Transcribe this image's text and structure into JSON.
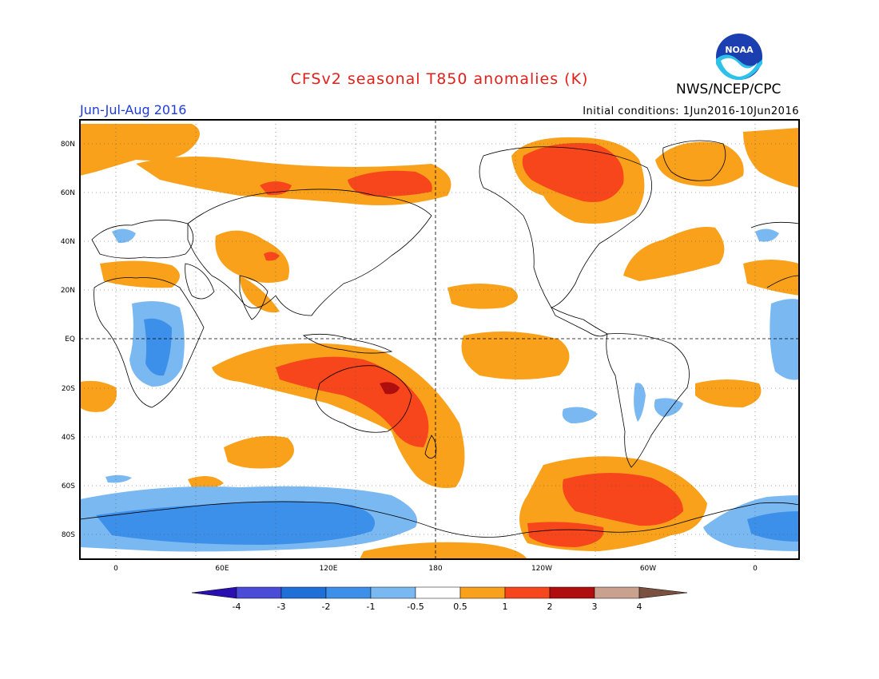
{
  "title": "CFSv2 seasonal T850 anomalies (K)",
  "agency": "NWS/NCEP/CPC",
  "logo_text": "NOAA",
  "period": "Jun-Jul-Aug 2016",
  "initial_conditions": "Initial conditions: 1Jun2016-10Jun2016",
  "lat_labels": [
    "80N",
    "60N",
    "40N",
    "20N",
    "EQ",
    "20S",
    "40S",
    "60S",
    "80S"
  ],
  "lon_labels": [
    "0",
    "60E",
    "120E",
    "180",
    "120W",
    "60W",
    "0"
  ],
  "colorbar": {
    "labels": [
      "-4",
      "-3",
      "-2",
      "-1",
      "-0.5",
      "0.5",
      "1",
      "2",
      "3",
      "4"
    ],
    "colors": [
      "#2a0fb0",
      "#4a4bd6",
      "#1f6fd8",
      "#3d90ea",
      "#7ab8f2",
      "#ffffff",
      "#f9a11b",
      "#f7461c",
      "#b00e0e",
      "#caa08e",
      "#7a5140"
    ]
  },
  "colors": {
    "title": "#e0201b",
    "period": "#1f3cd6",
    "warm1": "#f9a11b",
    "warm2": "#f7461c",
    "warm3": "#b00e0e",
    "cool1": "#7ab8f2",
    "cool2": "#3d90ea"
  }
}
